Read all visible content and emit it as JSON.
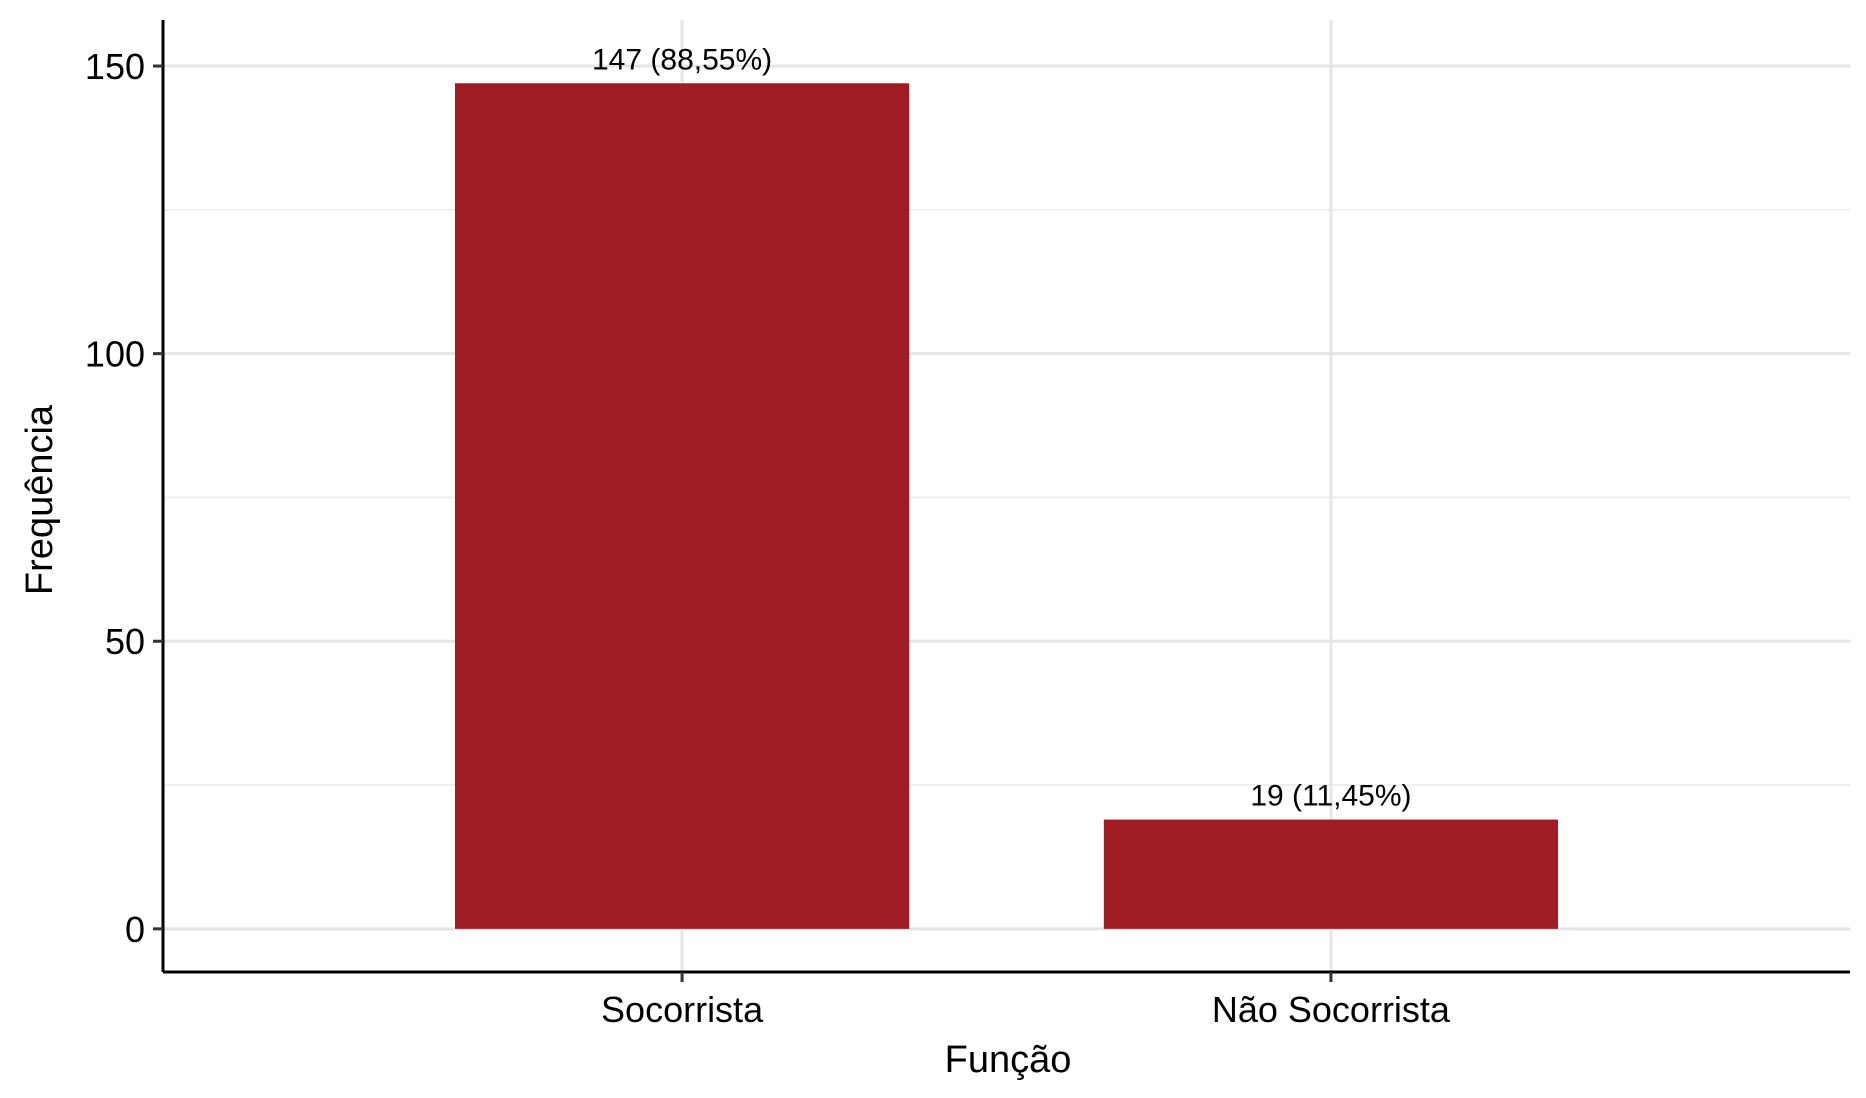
{
  "chart_data": {
    "type": "bar",
    "title": "",
    "xlabel": "Função",
    "ylabel": "Frequência",
    "categories": [
      "Socorrista",
      "Não Socorrista"
    ],
    "values": [
      147,
      19
    ],
    "data_labels": [
      "147 (88,55%)",
      "19 (11,45%)"
    ],
    "ylim": [
      -7.5,
      158
    ],
    "yticks": [
      0,
      50,
      100,
      150
    ],
    "ytick_labels": [
      "0",
      "50",
      "100",
      "150"
    ],
    "grid": true,
    "legend": "none",
    "bar_color": "#a01c23"
  }
}
